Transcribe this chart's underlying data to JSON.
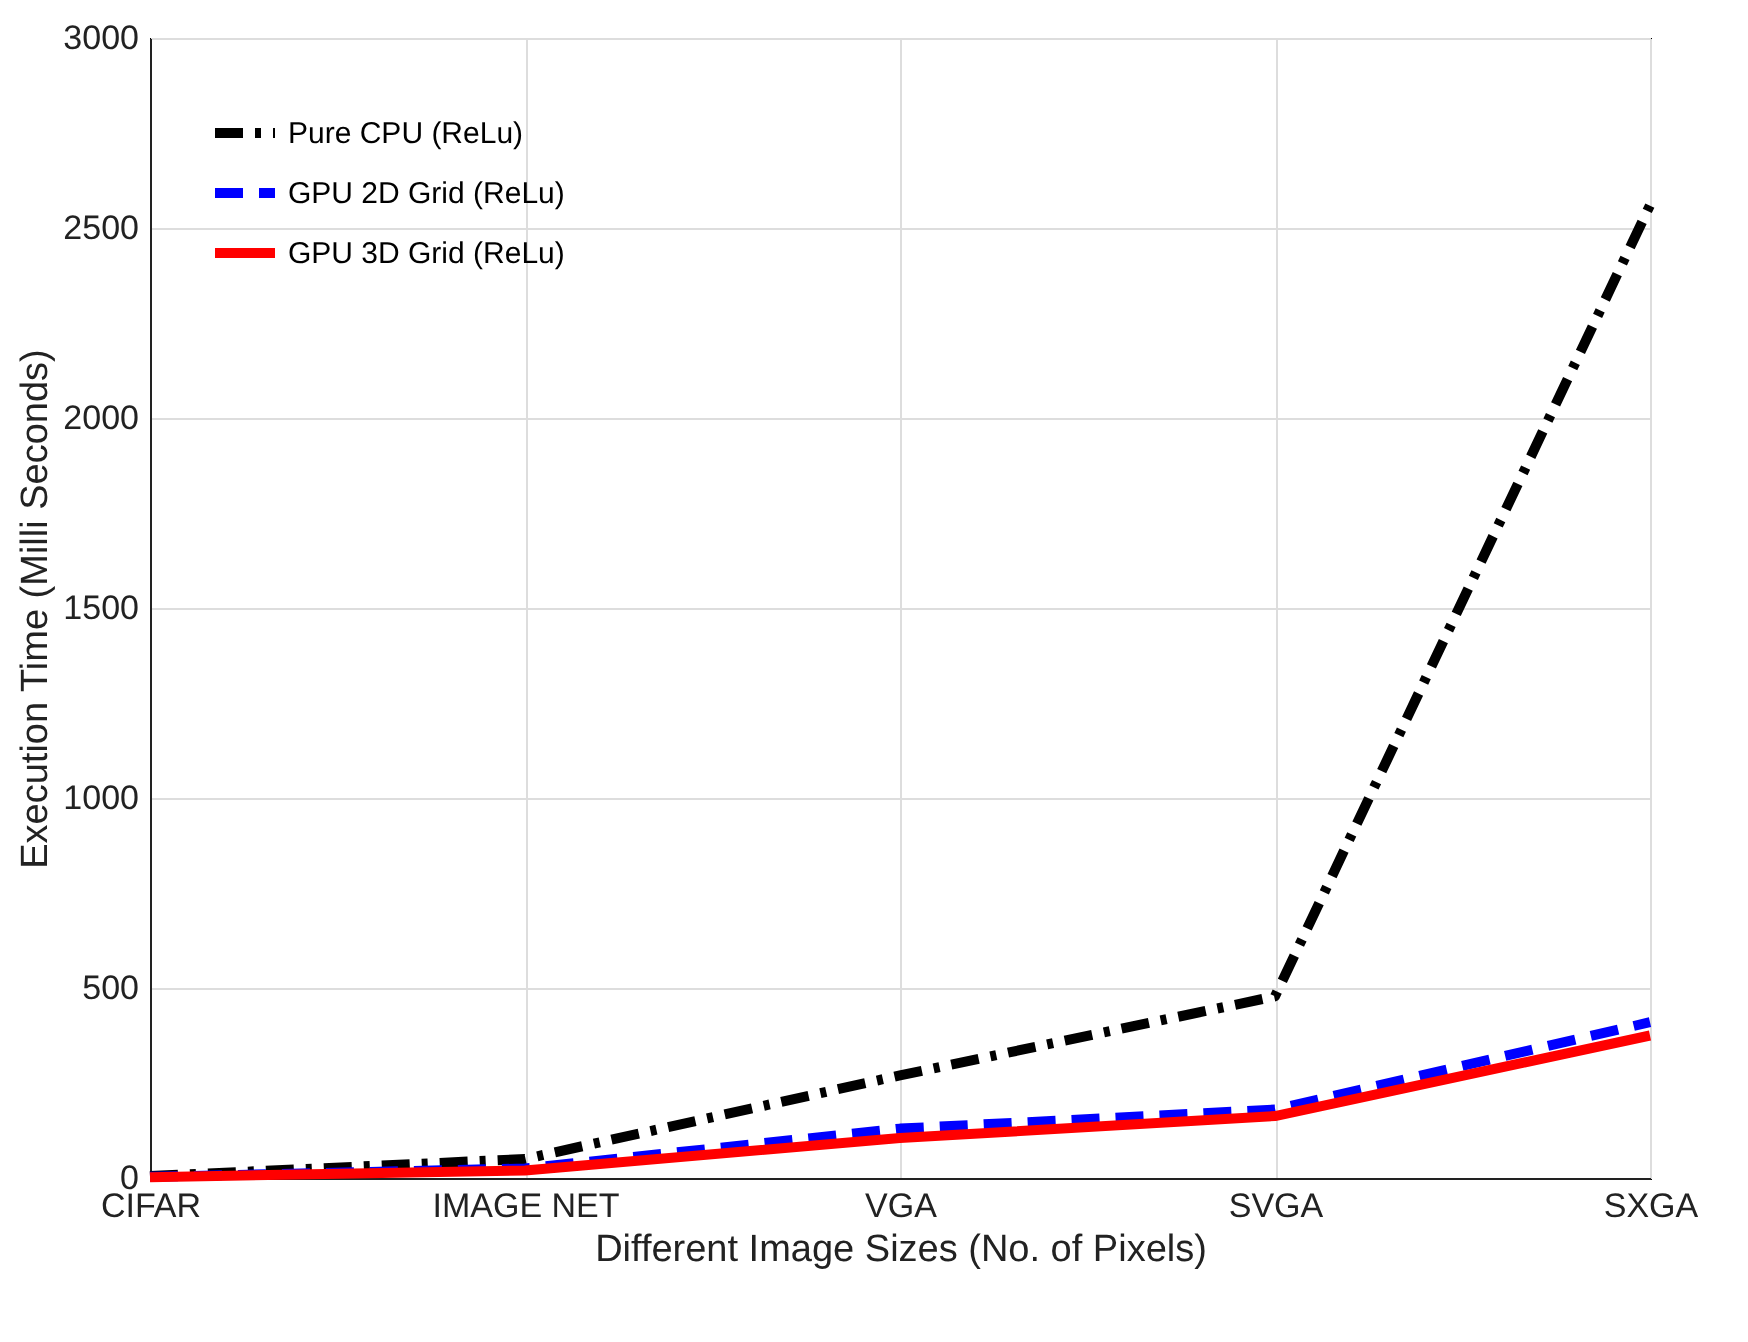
{
  "chart_data": {
    "type": "line",
    "xlabel": "Different Image Sizes (No. of Pixels)",
    "ylabel": "Execution Time (Milli Seconds)",
    "categories": [
      "CIFAR",
      "IMAGE NET",
      "VGA",
      "SVGA",
      "SXGA"
    ],
    "series": [
      {
        "name": "Pure CPU (ReLu)",
        "color": "#000000",
        "line_style": "dashdot",
        "values": [
          5,
          50,
          270,
          478,
          2560
        ]
      },
      {
        "name": "GPU 2D Grid (ReLu)",
        "color": "#0000ff",
        "line_style": "dashed",
        "values": [
          3,
          25,
          130,
          180,
          410
        ]
      },
      {
        "name": "GPU 3D Grid (ReLu)",
        "color": "#ff0000",
        "line_style": "solid",
        "values": [
          2,
          20,
          105,
          163,
          375
        ]
      }
    ],
    "ylim": [
      0,
      3000
    ],
    "yticks": [
      0,
      500,
      1000,
      1500,
      2000,
      2500,
      3000
    ],
    "grid": true,
    "legend": "top left",
    "marker": "none"
  }
}
